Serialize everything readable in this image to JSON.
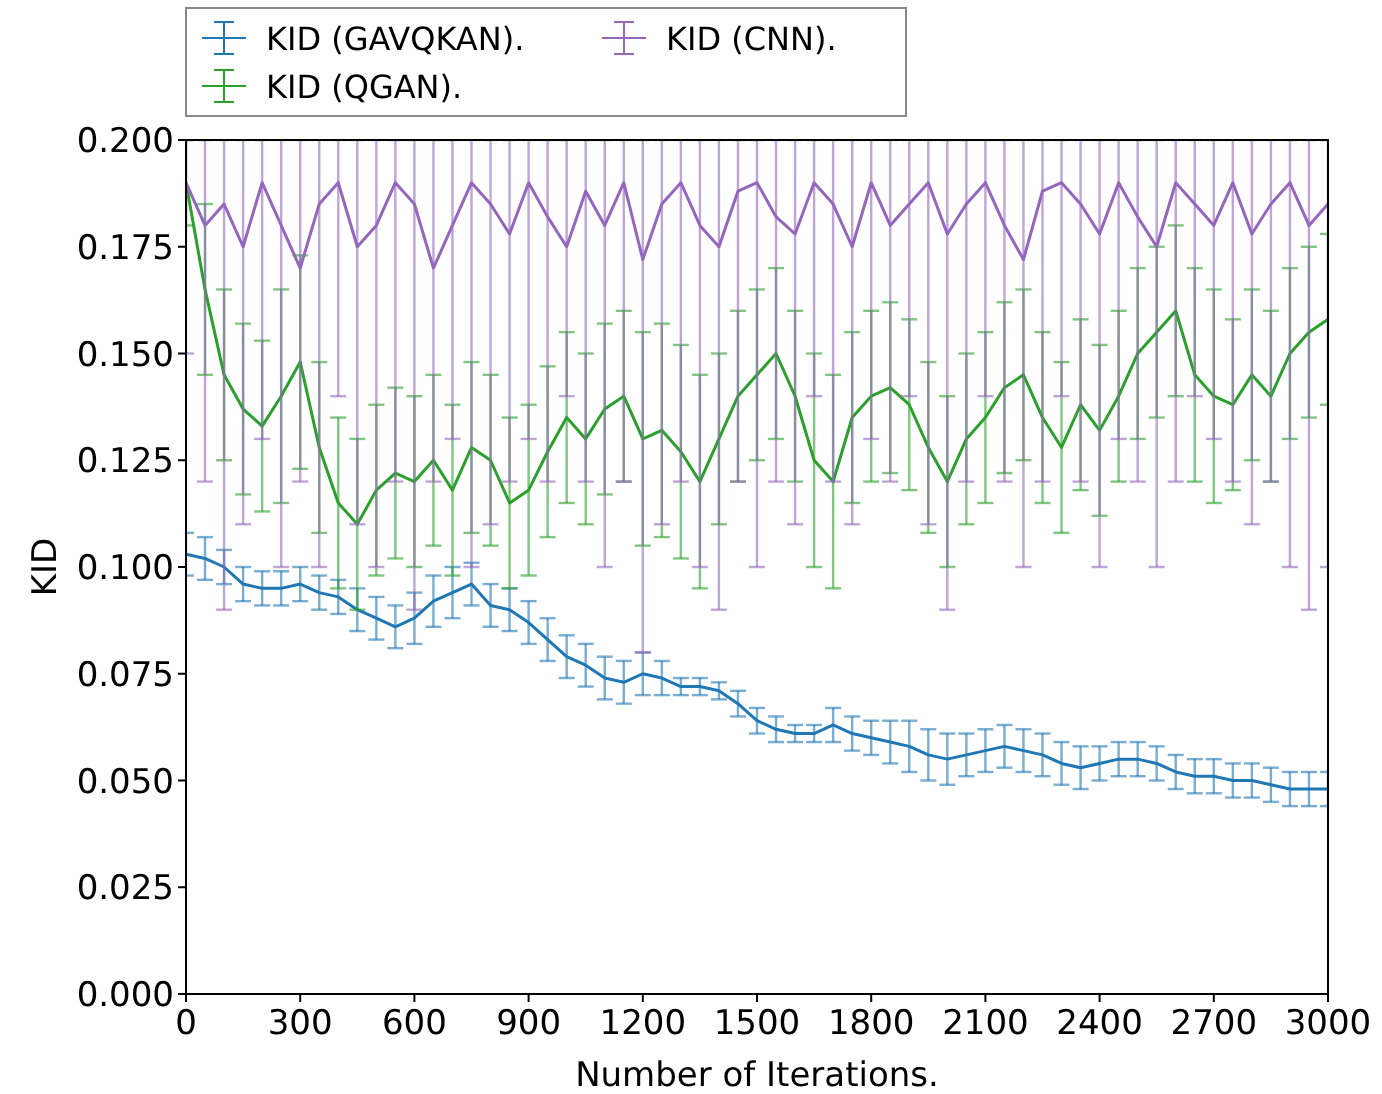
{
  "chart_data": {
    "type": "line",
    "xlabel": "Number of Iterations.",
    "ylabel": "KID",
    "xlim": [
      0,
      3000
    ],
    "ylim": [
      0,
      0.2
    ],
    "xticks": [
      0,
      300,
      600,
      900,
      1200,
      1500,
      1800,
      2100,
      2400,
      2700,
      3000
    ],
    "yticks": [
      {
        "value": 0,
        "label": "0.000"
      },
      {
        "value": 0.025,
        "label": "0.025"
      },
      {
        "value": 0.05,
        "label": "0.050"
      },
      {
        "value": 0.075,
        "label": "0.075"
      },
      {
        "value": 0.1,
        "label": "0.100"
      },
      {
        "value": 0.125,
        "label": "0.125"
      },
      {
        "value": 0.15,
        "label": "0.150"
      },
      {
        "value": 0.175,
        "label": "0.175"
      },
      {
        "value": 0.2,
        "label": "0.200"
      }
    ],
    "x": [
      0,
      50,
      100,
      150,
      200,
      250,
      300,
      350,
      400,
      450,
      500,
      550,
      600,
      650,
      700,
      750,
      800,
      850,
      900,
      950,
      1000,
      1050,
      1100,
      1150,
      1200,
      1250,
      1300,
      1350,
      1400,
      1450,
      1500,
      1550,
      1600,
      1650,
      1700,
      1750,
      1800,
      1850,
      1900,
      1950,
      2000,
      2050,
      2100,
      2150,
      2200,
      2250,
      2300,
      2350,
      2400,
      2450,
      2500,
      2550,
      2600,
      2650,
      2700,
      2750,
      2800,
      2850,
      2900,
      2950,
      3000
    ],
    "grid": false,
    "legend": "top",
    "marker": "none",
    "line_style": "solid",
    "series": [
      {
        "name": "KID (GAVQKAN).",
        "color": "#1f77b4",
        "values": [
          0.103,
          0.102,
          0.1,
          0.096,
          0.095,
          0.095,
          0.096,
          0.094,
          0.093,
          0.09,
          0.088,
          0.086,
          0.088,
          0.092,
          0.094,
          0.096,
          0.091,
          0.09,
          0.087,
          0.083,
          0.079,
          0.077,
          0.074,
          0.073,
          0.075,
          0.074,
          0.072,
          0.072,
          0.071,
          0.068,
          0.064,
          0.062,
          0.061,
          0.061,
          0.063,
          0.061,
          0.06,
          0.059,
          0.058,
          0.056,
          0.055,
          0.056,
          0.057,
          0.058,
          0.057,
          0.056,
          0.054,
          0.053,
          0.054,
          0.055,
          0.055,
          0.054,
          0.052,
          0.051,
          0.051,
          0.05,
          0.05,
          0.049,
          0.048,
          0.048,
          0.048
        ],
        "errors": [
          0.005,
          0.005,
          0.004,
          0.004,
          0.004,
          0.004,
          0.004,
          0.004,
          0.004,
          0.005,
          0.005,
          0.005,
          0.006,
          0.006,
          0.006,
          0.005,
          0.005,
          0.005,
          0.005,
          0.005,
          0.005,
          0.005,
          0.005,
          0.005,
          0.005,
          0.004,
          0.002,
          0.002,
          0.002,
          0.003,
          0.003,
          0.003,
          0.002,
          0.002,
          0.004,
          0.004,
          0.004,
          0.005,
          0.006,
          0.006,
          0.006,
          0.005,
          0.005,
          0.005,
          0.005,
          0.005,
          0.005,
          0.005,
          0.004,
          0.004,
          0.004,
          0.004,
          0.004,
          0.004,
          0.004,
          0.004,
          0.004,
          0.004,
          0.004,
          0.004,
          0.004
        ]
      },
      {
        "name": "KID (QGAN).",
        "color": "#2ca02c",
        "values": [
          0.19,
          0.165,
          0.145,
          0.137,
          0.133,
          0.14,
          0.148,
          0.128,
          0.115,
          0.11,
          0.118,
          0.122,
          0.12,
          0.125,
          0.118,
          0.128,
          0.125,
          0.115,
          0.118,
          0.127,
          0.135,
          0.13,
          0.137,
          0.14,
          0.13,
          0.132,
          0.127,
          0.12,
          0.13,
          0.14,
          0.145,
          0.15,
          0.14,
          0.125,
          0.12,
          0.135,
          0.14,
          0.142,
          0.138,
          0.128,
          0.12,
          0.13,
          0.135,
          0.142,
          0.145,
          0.135,
          0.128,
          0.138,
          0.132,
          0.14,
          0.15,
          0.155,
          0.16,
          0.145,
          0.14,
          0.138,
          0.145,
          0.14,
          0.15,
          0.155,
          0.158
        ],
        "errors": [
          0.01,
          0.02,
          0.02,
          0.02,
          0.02,
          0.025,
          0.025,
          0.02,
          0.02,
          0.02,
          0.02,
          0.02,
          0.02,
          0.02,
          0.02,
          0.02,
          0.02,
          0.02,
          0.02,
          0.02,
          0.02,
          0.02,
          0.02,
          0.02,
          0.025,
          0.025,
          0.025,
          0.025,
          0.02,
          0.02,
          0.02,
          0.02,
          0.02,
          0.025,
          0.025,
          0.02,
          0.02,
          0.02,
          0.02,
          0.02,
          0.02,
          0.02,
          0.02,
          0.02,
          0.02,
          0.02,
          0.02,
          0.02,
          0.02,
          0.02,
          0.02,
          0.02,
          0.02,
          0.025,
          0.025,
          0.02,
          0.02,
          0.02,
          0.02,
          0.02,
          0.02
        ]
      },
      {
        "name": "KID (CNN).",
        "color": "#9467bd",
        "values": [
          0.19,
          0.18,
          0.185,
          0.175,
          0.19,
          0.18,
          0.17,
          0.185,
          0.19,
          0.175,
          0.18,
          0.19,
          0.185,
          0.17,
          0.18,
          0.19,
          0.185,
          0.178,
          0.19,
          0.182,
          0.175,
          0.188,
          0.18,
          0.19,
          0.172,
          0.185,
          0.19,
          0.18,
          0.175,
          0.188,
          0.19,
          0.182,
          0.178,
          0.19,
          0.185,
          0.175,
          0.19,
          0.18,
          0.185,
          0.19,
          0.178,
          0.185,
          0.19,
          0.18,
          0.172,
          0.188,
          0.19,
          0.185,
          0.178,
          0.19,
          0.182,
          0.175,
          0.19,
          0.185,
          0.18,
          0.19,
          0.178,
          0.185,
          0.19,
          0.18,
          0.185
        ],
        "errors": [
          [
            0.15,
            0.2
          ],
          [
            0.12,
            0.2
          ],
          [
            0.09,
            0.2
          ],
          [
            0.11,
            0.2
          ],
          [
            0.13,
            0.2
          ],
          [
            0.1,
            0.2
          ],
          [
            0.12,
            0.2
          ],
          [
            0.1,
            0.2
          ],
          [
            0.14,
            0.2
          ],
          [
            0.11,
            0.2
          ],
          [
            0.1,
            0.2
          ],
          [
            0.12,
            0.2
          ],
          [
            0.09,
            0.2
          ],
          [
            0.12,
            0.2
          ],
          [
            0.13,
            0.2
          ],
          [
            0.1,
            0.2
          ],
          [
            0.11,
            0.2
          ],
          [
            0.12,
            0.2
          ],
          [
            0.13,
            0.2
          ],
          [
            0.12,
            0.2
          ],
          [
            0.14,
            0.2
          ],
          [
            0.12,
            0.2
          ],
          [
            0.1,
            0.2
          ],
          [
            0.12,
            0.2
          ],
          [
            0.08,
            0.2
          ],
          [
            0.11,
            0.2
          ],
          [
            0.12,
            0.2
          ],
          [
            0.1,
            0.2
          ],
          [
            0.09,
            0.2
          ],
          [
            0.12,
            0.2
          ],
          [
            0.1,
            0.2
          ],
          [
            0.12,
            0.2
          ],
          [
            0.11,
            0.2
          ],
          [
            0.14,
            0.2
          ],
          [
            0.12,
            0.2
          ],
          [
            0.11,
            0.2
          ],
          [
            0.13,
            0.2
          ],
          [
            0.12,
            0.2
          ],
          [
            0.14,
            0.2
          ],
          [
            0.11,
            0.2
          ],
          [
            0.09,
            0.2
          ],
          [
            0.12,
            0.2
          ],
          [
            0.14,
            0.2
          ],
          [
            0.12,
            0.2
          ],
          [
            0.1,
            0.2
          ],
          [
            0.12,
            0.2
          ],
          [
            0.14,
            0.2
          ],
          [
            0.12,
            0.2
          ],
          [
            0.1,
            0.2
          ],
          [
            0.13,
            0.2
          ],
          [
            0.12,
            0.2
          ],
          [
            0.1,
            0.2
          ],
          [
            0.12,
            0.2
          ],
          [
            0.14,
            0.2
          ],
          [
            0.13,
            0.2
          ],
          [
            0.12,
            0.2
          ],
          [
            0.11,
            0.2
          ],
          [
            0.12,
            0.2
          ],
          [
            0.1,
            0.2
          ],
          [
            0.09,
            0.2
          ],
          [
            0.1,
            0.2
          ]
        ]
      }
    ]
  }
}
